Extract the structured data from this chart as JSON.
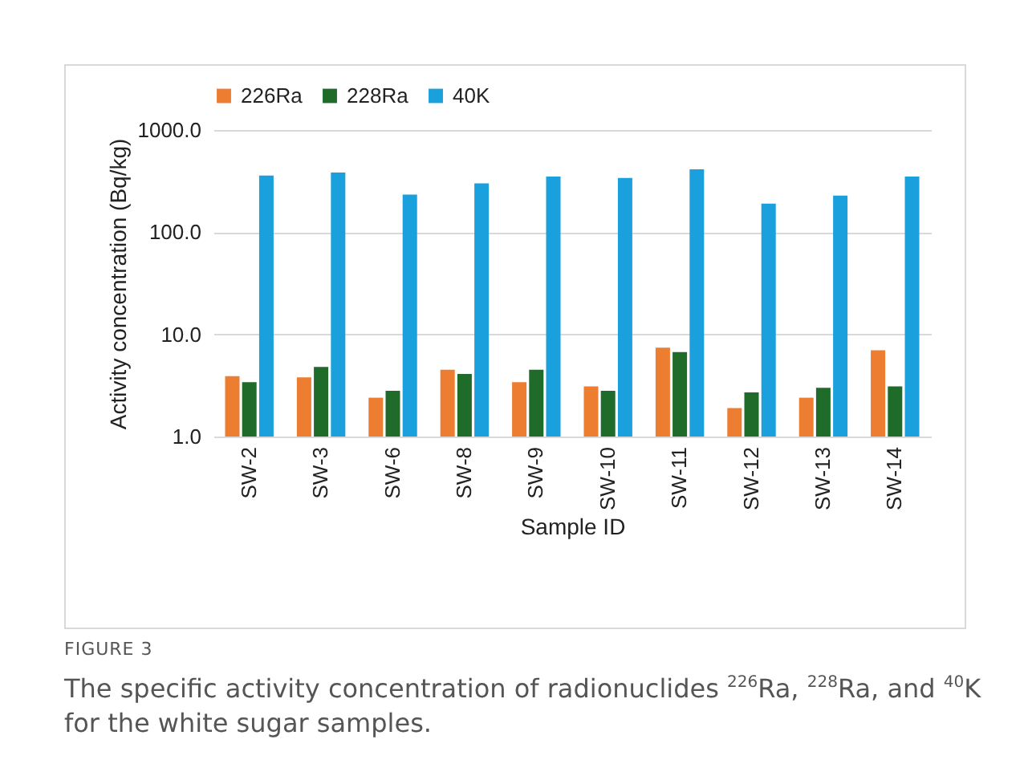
{
  "chart_data": {
    "type": "bar",
    "xlabel": "Sample ID",
    "ylabel": "Activity concentration (Bq/kg)",
    "categories": [
      "SW-2",
      "SW-3",
      "SW-6",
      "SW-8",
      "SW-9",
      "SW-10",
      "SW-11",
      "SW-12",
      "SW-13",
      "SW-14"
    ],
    "series": [
      {
        "name": "226Ra",
        "color": "#ed7d31",
        "values": [
          3.9,
          3.8,
          2.4,
          4.5,
          3.4,
          3.1,
          7.4,
          1.9,
          2.4,
          7.0
        ]
      },
      {
        "name": "228Ra",
        "color": "#1e6b2a",
        "values": [
          3.4,
          4.8,
          2.8,
          4.1,
          4.5,
          2.8,
          6.7,
          2.7,
          3.0,
          3.1
        ]
      },
      {
        "name": "40K",
        "color": "#1aa0dc",
        "values": [
          358,
          384,
          233,
          300,
          351,
          339,
          412,
          190,
          228,
          351
        ]
      }
    ],
    "log": true,
    "ylim": [
      1,
      1000
    ],
    "yticks": [
      {
        "value": 1,
        "label": "1.0"
      },
      {
        "value": 10,
        "label": "10.0"
      },
      {
        "value": 100,
        "label": "100.0"
      },
      {
        "value": 1000,
        "label": "1000.0"
      }
    ],
    "grid": "y",
    "legend": "top",
    "annotations": [
      "FIGURE 3",
      "The specific activity concentration of radionuclides $^{226}$Ra, $^{228}$Ra, and $^{40}$K for the white sugar samples."
    ]
  }
}
